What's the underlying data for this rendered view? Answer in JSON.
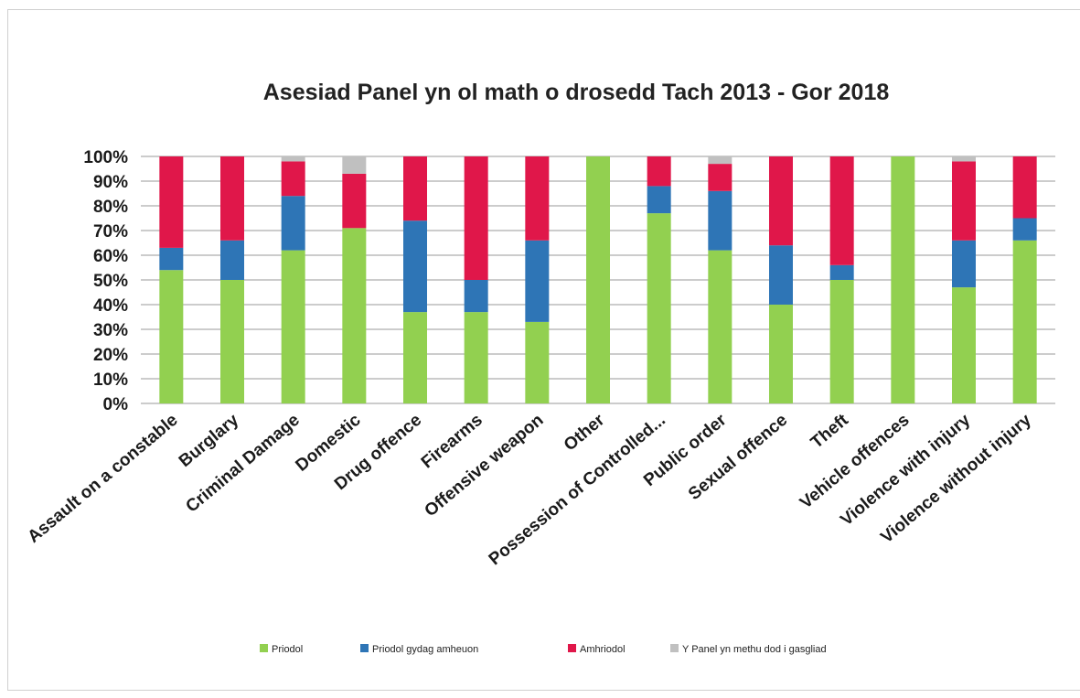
{
  "chart_data": {
    "type": "bar",
    "stacked": true,
    "title": "Asesiad Panel yn ol math o drosedd Tach 2013 - Gor 2018",
    "xlabel": "",
    "ylabel": "",
    "ylim": [
      0,
      100
    ],
    "y_tick_labels": [
      "0%",
      "10%",
      "20%",
      "30%",
      "40%",
      "50%",
      "60%",
      "70%",
      "80%",
      "90%",
      "100%"
    ],
    "grid": "horizontal",
    "legend_position": "bottom",
    "categories": [
      "Assault on a constable",
      "Burglary",
      "Criminal Damage",
      "Domestic",
      "Drug offence",
      "Firearms",
      "Offensive weapon",
      "Other",
      "Possession of Controlled...",
      "Public order",
      "Sexual offence",
      "Theft",
      "Vehicle offences",
      "Violence with injury",
      "Violence without injury"
    ],
    "series": [
      {
        "name": "Priodol",
        "color": "#92d050",
        "values": [
          54,
          50,
          62,
          71,
          37,
          37,
          33,
          100,
          77,
          62,
          40,
          50,
          100,
          47,
          66
        ]
      },
      {
        "name": "Priodol gydag amheuon",
        "color": "#2e75b6",
        "values": [
          9,
          16,
          22,
          0,
          37,
          13,
          33,
          0,
          11,
          24,
          24,
          6,
          0,
          19,
          9
        ]
      },
      {
        "name": "Amhriodol",
        "color": "#e0174a",
        "values": [
          37,
          34,
          14,
          22,
          26,
          50,
          34,
          0,
          12,
          11,
          36,
          44,
          0,
          32,
          25
        ]
      },
      {
        "name": "Y Panel yn methu dod i gasgliad",
        "color": "#c0c0c0",
        "values": [
          0,
          0,
          2,
          7,
          0,
          0,
          0,
          0,
          0,
          3,
          0,
          0,
          0,
          2,
          0
        ]
      }
    ]
  }
}
